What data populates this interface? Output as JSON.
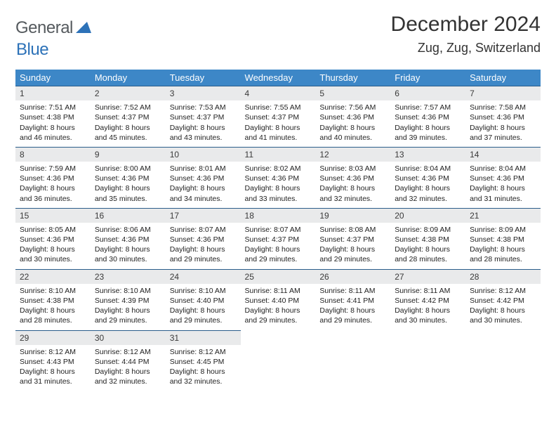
{
  "header": {
    "logo_part1": "General",
    "logo_part2": "Blue",
    "month_title": "December 2024",
    "location": "Zug, Zug, Switzerland"
  },
  "colors": {
    "header_bg": "#3d87c7",
    "header_text": "#ffffff",
    "daynum_bg": "#e9eaeb",
    "row_divider": "#2a5d8a",
    "logo_gray": "#555a5e",
    "logo_blue": "#2d72b8",
    "page_bg": "#ffffff",
    "body_text": "#222222"
  },
  "weekdays": [
    "Sunday",
    "Monday",
    "Tuesday",
    "Wednesday",
    "Thursday",
    "Friday",
    "Saturday"
  ],
  "weeks": [
    [
      {
        "n": "1",
        "sr": "Sunrise: 7:51 AM",
        "ss": "Sunset: 4:38 PM",
        "d1": "Daylight: 8 hours",
        "d2": "and 46 minutes."
      },
      {
        "n": "2",
        "sr": "Sunrise: 7:52 AM",
        "ss": "Sunset: 4:37 PM",
        "d1": "Daylight: 8 hours",
        "d2": "and 45 minutes."
      },
      {
        "n": "3",
        "sr": "Sunrise: 7:53 AM",
        "ss": "Sunset: 4:37 PM",
        "d1": "Daylight: 8 hours",
        "d2": "and 43 minutes."
      },
      {
        "n": "4",
        "sr": "Sunrise: 7:55 AM",
        "ss": "Sunset: 4:37 PM",
        "d1": "Daylight: 8 hours",
        "d2": "and 41 minutes."
      },
      {
        "n": "5",
        "sr": "Sunrise: 7:56 AM",
        "ss": "Sunset: 4:36 PM",
        "d1": "Daylight: 8 hours",
        "d2": "and 40 minutes."
      },
      {
        "n": "6",
        "sr": "Sunrise: 7:57 AM",
        "ss": "Sunset: 4:36 PM",
        "d1": "Daylight: 8 hours",
        "d2": "and 39 minutes."
      },
      {
        "n": "7",
        "sr": "Sunrise: 7:58 AM",
        "ss": "Sunset: 4:36 PM",
        "d1": "Daylight: 8 hours",
        "d2": "and 37 minutes."
      }
    ],
    [
      {
        "n": "8",
        "sr": "Sunrise: 7:59 AM",
        "ss": "Sunset: 4:36 PM",
        "d1": "Daylight: 8 hours",
        "d2": "and 36 minutes."
      },
      {
        "n": "9",
        "sr": "Sunrise: 8:00 AM",
        "ss": "Sunset: 4:36 PM",
        "d1": "Daylight: 8 hours",
        "d2": "and 35 minutes."
      },
      {
        "n": "10",
        "sr": "Sunrise: 8:01 AM",
        "ss": "Sunset: 4:36 PM",
        "d1": "Daylight: 8 hours",
        "d2": "and 34 minutes."
      },
      {
        "n": "11",
        "sr": "Sunrise: 8:02 AM",
        "ss": "Sunset: 4:36 PM",
        "d1": "Daylight: 8 hours",
        "d2": "and 33 minutes."
      },
      {
        "n": "12",
        "sr": "Sunrise: 8:03 AM",
        "ss": "Sunset: 4:36 PM",
        "d1": "Daylight: 8 hours",
        "d2": "and 32 minutes."
      },
      {
        "n": "13",
        "sr": "Sunrise: 8:04 AM",
        "ss": "Sunset: 4:36 PM",
        "d1": "Daylight: 8 hours",
        "d2": "and 32 minutes."
      },
      {
        "n": "14",
        "sr": "Sunrise: 8:04 AM",
        "ss": "Sunset: 4:36 PM",
        "d1": "Daylight: 8 hours",
        "d2": "and 31 minutes."
      }
    ],
    [
      {
        "n": "15",
        "sr": "Sunrise: 8:05 AM",
        "ss": "Sunset: 4:36 PM",
        "d1": "Daylight: 8 hours",
        "d2": "and 30 minutes."
      },
      {
        "n": "16",
        "sr": "Sunrise: 8:06 AM",
        "ss": "Sunset: 4:36 PM",
        "d1": "Daylight: 8 hours",
        "d2": "and 30 minutes."
      },
      {
        "n": "17",
        "sr": "Sunrise: 8:07 AM",
        "ss": "Sunset: 4:36 PM",
        "d1": "Daylight: 8 hours",
        "d2": "and 29 minutes."
      },
      {
        "n": "18",
        "sr": "Sunrise: 8:07 AM",
        "ss": "Sunset: 4:37 PM",
        "d1": "Daylight: 8 hours",
        "d2": "and 29 minutes."
      },
      {
        "n": "19",
        "sr": "Sunrise: 8:08 AM",
        "ss": "Sunset: 4:37 PM",
        "d1": "Daylight: 8 hours",
        "d2": "and 29 minutes."
      },
      {
        "n": "20",
        "sr": "Sunrise: 8:09 AM",
        "ss": "Sunset: 4:38 PM",
        "d1": "Daylight: 8 hours",
        "d2": "and 28 minutes."
      },
      {
        "n": "21",
        "sr": "Sunrise: 8:09 AM",
        "ss": "Sunset: 4:38 PM",
        "d1": "Daylight: 8 hours",
        "d2": "and 28 minutes."
      }
    ],
    [
      {
        "n": "22",
        "sr": "Sunrise: 8:10 AM",
        "ss": "Sunset: 4:38 PM",
        "d1": "Daylight: 8 hours",
        "d2": "and 28 minutes."
      },
      {
        "n": "23",
        "sr": "Sunrise: 8:10 AM",
        "ss": "Sunset: 4:39 PM",
        "d1": "Daylight: 8 hours",
        "d2": "and 29 minutes."
      },
      {
        "n": "24",
        "sr": "Sunrise: 8:10 AM",
        "ss": "Sunset: 4:40 PM",
        "d1": "Daylight: 8 hours",
        "d2": "and 29 minutes."
      },
      {
        "n": "25",
        "sr": "Sunrise: 8:11 AM",
        "ss": "Sunset: 4:40 PM",
        "d1": "Daylight: 8 hours",
        "d2": "and 29 minutes."
      },
      {
        "n": "26",
        "sr": "Sunrise: 8:11 AM",
        "ss": "Sunset: 4:41 PM",
        "d1": "Daylight: 8 hours",
        "d2": "and 29 minutes."
      },
      {
        "n": "27",
        "sr": "Sunrise: 8:11 AM",
        "ss": "Sunset: 4:42 PM",
        "d1": "Daylight: 8 hours",
        "d2": "and 30 minutes."
      },
      {
        "n": "28",
        "sr": "Sunrise: 8:12 AM",
        "ss": "Sunset: 4:42 PM",
        "d1": "Daylight: 8 hours",
        "d2": "and 30 minutes."
      }
    ],
    [
      {
        "n": "29",
        "sr": "Sunrise: 8:12 AM",
        "ss": "Sunset: 4:43 PM",
        "d1": "Daylight: 8 hours",
        "d2": "and 31 minutes."
      },
      {
        "n": "30",
        "sr": "Sunrise: 8:12 AM",
        "ss": "Sunset: 4:44 PM",
        "d1": "Daylight: 8 hours",
        "d2": "and 32 minutes."
      },
      {
        "n": "31",
        "sr": "Sunrise: 8:12 AM",
        "ss": "Sunset: 4:45 PM",
        "d1": "Daylight: 8 hours",
        "d2": "and 32 minutes."
      },
      {
        "empty": true
      },
      {
        "empty": true
      },
      {
        "empty": true
      },
      {
        "empty": true
      }
    ]
  ]
}
